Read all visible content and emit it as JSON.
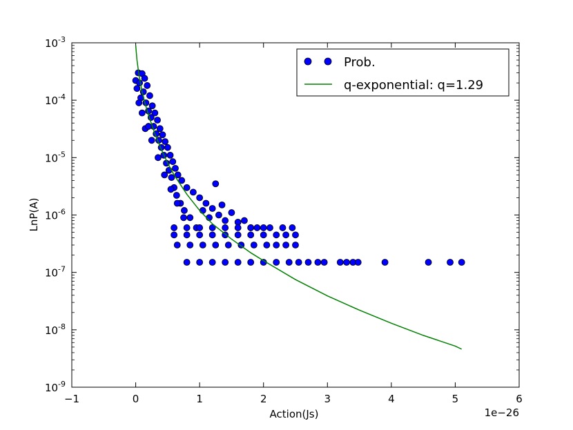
{
  "chart_data": {
    "type": "scatter",
    "title": "",
    "xlabel": "Action(Js)",
    "ylabel": "LnP(A)",
    "x_offset_label": "1e−26",
    "x_scale_exponent": -26,
    "xlim": [
      -1e-26,
      6e-26
    ],
    "ylim": [
      1e-09,
      0.001
    ],
    "yscale": "log",
    "grid": false,
    "legend_position": "top-right",
    "x_ticks": [
      {
        "value": -1e-26,
        "label": "−1"
      },
      {
        "value": 0,
        "label": "0"
      },
      {
        "value": 1e-26,
        "label": "1"
      },
      {
        "value": 2e-26,
        "label": "2"
      },
      {
        "value": 3e-26,
        "label": "3"
      },
      {
        "value": 4e-26,
        "label": "4"
      },
      {
        "value": 5e-26,
        "label": "5"
      },
      {
        "value": 6e-26,
        "label": "6"
      }
    ],
    "y_ticks": [
      {
        "value": 1e-09,
        "base": "10",
        "exp": "-9"
      },
      {
        "value": 1e-08,
        "base": "10",
        "exp": "-8"
      },
      {
        "value": 1e-07,
        "base": "10",
        "exp": "-7"
      },
      {
        "value": 1e-06,
        "base": "10",
        "exp": "-6"
      },
      {
        "value": 1e-05,
        "base": "10",
        "exp": "-5"
      },
      {
        "value": 0.0001,
        "base": "10",
        "exp": "-4"
      },
      {
        "value": 0.001,
        "base": "10",
        "exp": "-3"
      }
    ],
    "series": [
      {
        "name": "Prob.",
        "kind": "scatter",
        "color": "#0000ff",
        "edge_color": "#000000",
        "points": [
          [
            0.0,
            0.00022
          ],
          [
            2e-28,
            0.00016
          ],
          [
            4e-28,
            0.0003
          ],
          [
            6e-28,
            0.0002
          ],
          [
            8e-28,
            0.00011
          ],
          [
            1e-27,
            0.00029
          ],
          [
            1.2e-27,
            0.00014
          ],
          [
            1.4e-27,
            0.00024
          ],
          [
            1.6e-27,
            9e-05
          ],
          [
            1.8e-27,
            0.00018
          ],
          [
            2e-27,
            6.5e-05
          ],
          [
            2.2e-27,
            0.00012
          ],
          [
            2.4e-27,
            5e-05
          ],
          [
            2.6e-27,
            8e-05
          ],
          [
            2.8e-27,
            3.5e-05
          ],
          [
            3e-27,
            6e-05
          ],
          [
            3.2e-27,
            2.6e-05
          ],
          [
            3.4e-27,
            4.5e-05
          ],
          [
            3.6e-27,
            2e-05
          ],
          [
            3.8e-27,
            3.2e-05
          ],
          [
            4e-27,
            1.5e-05
          ],
          [
            4.2e-27,
            2.5e-05
          ],
          [
            4.4e-27,
            1.1e-05
          ],
          [
            4.6e-27,
            1.9e-05
          ],
          [
            4.8e-27,
            8e-06
          ],
          [
            5e-27,
            1.5e-05
          ],
          [
            5.2e-27,
            6e-06
          ],
          [
            5.4e-27,
            1.1e-05
          ],
          [
            5.6e-27,
            4.5e-06
          ],
          [
            5.8e-27,
            8.5e-06
          ],
          [
            6e-27,
            3e-06
          ],
          [
            6.2e-27,
            6.5e-06
          ],
          [
            6.4e-27,
            2.2e-06
          ],
          [
            6.6e-27,
            5e-06
          ],
          [
            7e-27,
            1.6e-06
          ],
          [
            7.2e-27,
            4e-06
          ],
          [
            7.6e-27,
            1.2e-06
          ],
          [
            8e-27,
            3e-06
          ],
          [
            8.5e-27,
            9e-07
          ],
          [
            9e-27,
            2.5e-06
          ],
          [
            9.5e-27,
            6e-07
          ],
          [
            1e-26,
            2e-06
          ],
          [
            1.05e-26,
            1.2e-06
          ],
          [
            1.1e-26,
            1.6e-06
          ],
          [
            1.15e-26,
            9e-07
          ],
          [
            1.2e-26,
            1.3e-06
          ],
          [
            1.25e-26,
            3.5e-06
          ],
          [
            1.3e-26,
            1e-06
          ],
          [
            1.35e-26,
            1.5e-06
          ],
          [
            1.4e-26,
            8e-07
          ],
          [
            1.5e-26,
            1.1e-06
          ],
          [
            1.6e-26,
            7.5e-07
          ],
          [
            1.7e-26,
            8e-07
          ],
          [
            1.8e-26,
            6e-07
          ],
          [
            1.9e-26,
            6e-07
          ],
          [
            1.5e-27,
            3.2e-05
          ],
          [
            2.5e-27,
            2e-05
          ],
          [
            3.5e-27,
            1e-05
          ],
          [
            4.5e-27,
            5e-06
          ],
          [
            5.5e-27,
            2.8e-06
          ],
          [
            6.5e-27,
            1.6e-06
          ],
          [
            7.5e-27,
            9e-07
          ],
          [
            5e-28,
            9e-05
          ],
          [
            1e-27,
            6e-05
          ],
          [
            2e-27,
            3.5e-05
          ],
          [
            6e-27,
            6e-07
          ],
          [
            8e-27,
            6e-07
          ],
          [
            1e-26,
            6e-07
          ],
          [
            1.2e-26,
            6e-07
          ],
          [
            1.4e-26,
            6e-07
          ],
          [
            1.6e-26,
            6e-07
          ],
          [
            1.8e-26,
            6e-07
          ],
          [
            2e-26,
            6e-07
          ],
          [
            2.1e-26,
            6e-07
          ],
          [
            2.3e-26,
            6e-07
          ],
          [
            2.45e-26,
            6e-07
          ],
          [
            6e-27,
            4.5e-07
          ],
          [
            8e-27,
            4.5e-07
          ],
          [
            1e-26,
            4.5e-07
          ],
          [
            1.2e-26,
            4.5e-07
          ],
          [
            1.4e-26,
            4.5e-07
          ],
          [
            1.6e-26,
            4.5e-07
          ],
          [
            1.8e-26,
            4.5e-07
          ],
          [
            2e-26,
            4.5e-07
          ],
          [
            2.2e-26,
            4.5e-07
          ],
          [
            2.35e-26,
            4.5e-07
          ],
          [
            2.5e-26,
            4.5e-07
          ],
          [
            6.5e-27,
            3e-07
          ],
          [
            8.5e-27,
            3e-07
          ],
          [
            1.05e-26,
            3e-07
          ],
          [
            1.25e-26,
            3e-07
          ],
          [
            1.45e-26,
            3e-07
          ],
          [
            1.65e-26,
            3e-07
          ],
          [
            1.85e-26,
            3e-07
          ],
          [
            2.05e-26,
            3e-07
          ],
          [
            2.2e-26,
            3e-07
          ],
          [
            2.35e-26,
            3e-07
          ],
          [
            2.5e-26,
            3e-07
          ],
          [
            8e-27,
            1.5e-07
          ],
          [
            1e-26,
            1.5e-07
          ],
          [
            1.2e-26,
            1.5e-07
          ],
          [
            1.4e-26,
            1.5e-07
          ],
          [
            1.6e-26,
            1.5e-07
          ],
          [
            1.8e-26,
            1.5e-07
          ],
          [
            2e-26,
            1.5e-07
          ],
          [
            2.2e-26,
            1.5e-07
          ],
          [
            2.4e-26,
            1.5e-07
          ],
          [
            2.55e-26,
            1.5e-07
          ],
          [
            2.7e-26,
            1.5e-07
          ],
          [
            2.85e-26,
            1.5e-07
          ],
          [
            2.95e-26,
            1.5e-07
          ],
          [
            3.2e-26,
            1.5e-07
          ],
          [
            3.3e-26,
            1.5e-07
          ],
          [
            3.4e-26,
            1.5e-07
          ],
          [
            3.48e-26,
            1.5e-07
          ],
          [
            3.9e-26,
            1.5e-07
          ],
          [
            4.58e-26,
            1.5e-07
          ],
          [
            4.92e-26,
            1.5e-07
          ],
          [
            5.1e-26,
            1.5e-07
          ]
        ]
      },
      {
        "name": "q-exponential: q=1.29",
        "kind": "line",
        "color": "#008000",
        "points": [
          [
            0.0,
            0.0009
          ],
          [
            2e-28,
            0.0005
          ],
          [
            5e-28,
            0.00028
          ],
          [
            1e-27,
            0.00014
          ],
          [
            1.5e-27,
            8.5e-05
          ],
          [
            2e-27,
            5.5e-05
          ],
          [
            3e-27,
            2.6e-05
          ],
          [
            4e-27,
            1.4e-05
          ],
          [
            5e-27,
            8e-06
          ],
          [
            6e-27,
            5e-06
          ],
          [
            8e-27,
            2.3e-06
          ],
          [
            1e-26,
            1.2e-06
          ],
          [
            1.2e-26,
            7e-07
          ],
          [
            1.5e-26,
            3.8e-07
          ],
          [
            1.8e-26,
            2.2e-07
          ],
          [
            2e-26,
            1.6e-07
          ],
          [
            2.5e-26,
            7.5e-08
          ],
          [
            3e-26,
            3.9e-08
          ],
          [
            3.5e-26,
            2.2e-08
          ],
          [
            4e-26,
            1.3e-08
          ],
          [
            4.5e-26,
            8e-09
          ],
          [
            5e-26,
            5.2e-09
          ],
          [
            5.1e-26,
            4.6e-09
          ]
        ]
      }
    ]
  }
}
